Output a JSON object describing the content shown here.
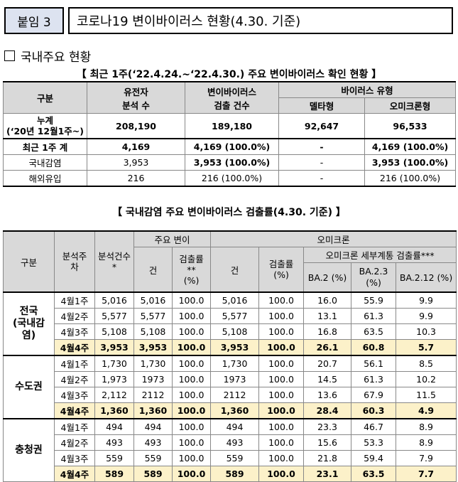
{
  "header": {
    "tag": "붙임 3",
    "title": "코로나19 변이바이러스 현황(4.30. 기준)"
  },
  "section_title": "국내주요 현황",
  "table1": {
    "caption": "【 최근 1주(‘22.4.24.~‘22.4.30.) 주요 변이바이러스 확인 현황 】",
    "headers": {
      "category": "구분",
      "genome_line1": "유전자",
      "genome_line2": "분석 수",
      "variant_line1": "변이바이러스",
      "variant_line2": "검출 건수",
      "virus_type": "바이러스 유형",
      "delta": "델타형",
      "omicron": "오미크론형"
    },
    "rows": [
      {
        "label": "누계",
        "label2": "(‘20년 12월1주~)",
        "c1": "208,190",
        "c2": "189,180",
        "c3": "92,647",
        "c4": "96,533"
      },
      {
        "label": "최근 1주 계",
        "c1": "4,169",
        "c2": "4,169 (100.0%)",
        "c3": "-",
        "c4": "4,169 (100.0%)"
      },
      {
        "label": "국내감염",
        "c1": "3,953",
        "c2": "3,953 (100.0%)",
        "c3": "-",
        "c4": "3,953 (100.0%)"
      },
      {
        "label": "해외유입",
        "c1": "216",
        "c2": "216 (100.0%)",
        "c3": "-",
        "c4": "216 (100.0%)"
      }
    ]
  },
  "table2": {
    "caption": "【 국내감염 주요 변이바이러스 검출률(4.30. 기준) 】",
    "headers": {
      "category": "구분",
      "week_line1": "분석주",
      "week_line2": "차",
      "count_line1": "분석건수",
      "count_line2": "*",
      "major_variant": "주요 변이",
      "omicron": "오미크론",
      "subtype_rate": "오미크론 세부계통 검출률***",
      "cases": "건",
      "rate_line1": "검출률",
      "rate_line2": "**",
      "rate_line3": "(%)",
      "rate_pct": "검출률",
      "rate_pct2": "(%)",
      "ba2": "BA.2 (%)",
      "ba23_line1": "BA.2.3",
      "ba23_line2": "(%)",
      "ba212": "BA.2.12 (%)"
    },
    "groups": [
      {
        "name_lines": [
          "전국",
          "(국내감",
          "염)"
        ],
        "rows": [
          {
            "week": "4월1주",
            "n": "5,016",
            "v": "5,016",
            "vr": "100.0",
            "o": "5,016",
            "or": "100.0",
            "ba2": "16.0",
            "ba23": "55.9",
            "ba212": "9.9"
          },
          {
            "week": "4월2주",
            "n": "5,577",
            "v": "5,577",
            "vr": "100.0",
            "o": "5,577",
            "or": "100.0",
            "ba2": "13.1",
            "ba23": "61.3",
            "ba212": "9.9"
          },
          {
            "week": "4월3주",
            "n": "5,108",
            "v": "5,108",
            "vr": "100.0",
            "o": "5,108",
            "or": "100.0",
            "ba2": "16.8",
            "ba23": "63.5",
            "ba212": "10.3"
          },
          {
            "week": "4월4주",
            "n": "3,953",
            "v": "3,953",
            "vr": "100.0",
            "o": "3,953",
            "or": "100.0",
            "ba2": "26.1",
            "ba23": "60.8",
            "ba212": "5.7"
          }
        ]
      },
      {
        "name_lines": [
          "수도권"
        ],
        "rows": [
          {
            "week": "4월1주",
            "n": "1,730",
            "v": "1,730",
            "vr": "100.0",
            "o": "1,730",
            "or": "100.0",
            "ba2": "20.7",
            "ba23": "56.1",
            "ba212": "8.5"
          },
          {
            "week": "4월2주",
            "n": "1,973",
            "v": "1973",
            "vr": "100.0",
            "o": "1973",
            "or": "100.0",
            "ba2": "14.5",
            "ba23": "61.3",
            "ba212": "10.2"
          },
          {
            "week": "4월3주",
            "n": "2,112",
            "v": "2112",
            "vr": "100.0",
            "o": "2112",
            "or": "100.0",
            "ba2": "13.6",
            "ba23": "67.9",
            "ba212": "11.5"
          },
          {
            "week": "4월4주",
            "n": "1,360",
            "v": "1,360",
            "vr": "100.0",
            "o": "1,360",
            "or": "100.0",
            "ba2": "28.4",
            "ba23": "60.3",
            "ba212": "4.9"
          }
        ]
      },
      {
        "name_lines": [
          "충청권"
        ],
        "rows": [
          {
            "week": "4월1주",
            "n": "494",
            "v": "494",
            "vr": "100.0",
            "o": "494",
            "or": "100.0",
            "ba2": "23.3",
            "ba23": "46.7",
            "ba212": "8.9"
          },
          {
            "week": "4월2주",
            "n": "493",
            "v": "493",
            "vr": "100.0",
            "o": "493",
            "or": "100.0",
            "ba2": "15.6",
            "ba23": "53.3",
            "ba212": "8.9"
          },
          {
            "week": "4월3주",
            "n": "559",
            "v": "559",
            "vr": "100.0",
            "o": "559",
            "or": "100.0",
            "ba2": "21.8",
            "ba23": "59.4",
            "ba212": "7.9"
          },
          {
            "week": "4월4주",
            "n": "589",
            "v": "589",
            "vr": "100.0",
            "o": "589",
            "or": "100.0",
            "ba2": "23.1",
            "ba23": "63.5",
            "ba212": "7.7"
          }
        ]
      }
    ]
  },
  "colors": {
    "header_bg": "#d9d9d9",
    "highlight_bg": "#fcf1c9",
    "tag_bg": "#dde3f0"
  }
}
